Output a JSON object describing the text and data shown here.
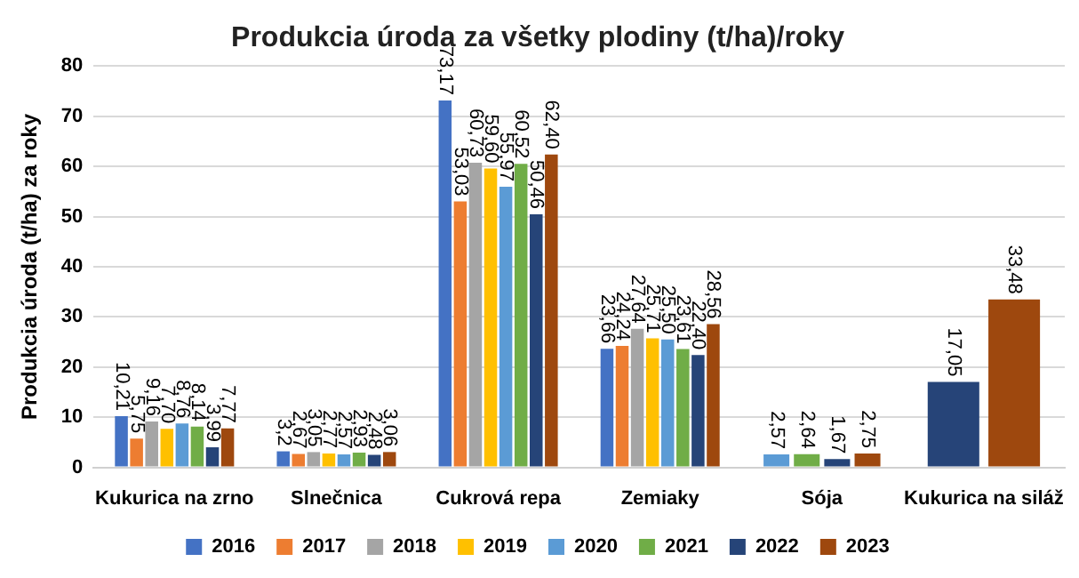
{
  "chart_data": {
    "type": "bar",
    "title": "Produkcia úroda za všetky plodiny (t/ha)/roky",
    "ylabel": "Produkcia úroda (t/ha) za roky",
    "categories": [
      "Kukurica na zrno",
      "Slnečnica",
      "Cukrová repa",
      "Zemiaky",
      "Sója",
      "Kukurica na siláž"
    ],
    "series": [
      {
        "name": "2016",
        "color": "#4472c4",
        "values": [
          10.21,
          3.2,
          73.17,
          23.66,
          null,
          null
        ],
        "value_labels": [
          "10,21",
          "3,2",
          "73,17",
          "23,66",
          null,
          null
        ]
      },
      {
        "name": "2017",
        "color": "#ed7d31",
        "values": [
          5.75,
          2.67,
          53.03,
          24.24,
          null,
          null
        ],
        "value_labels": [
          "5,75",
          "2,67",
          "53,03",
          "24,24",
          null,
          null
        ]
      },
      {
        "name": "2018",
        "color": "#a5a5a5",
        "values": [
          9.16,
          3.05,
          60.73,
          27.64,
          null,
          null
        ],
        "value_labels": [
          "9,16",
          "3,05",
          "60,73",
          "27,64",
          null,
          null
        ]
      },
      {
        "name": "2019",
        "color": "#ffc000",
        "values": [
          7.7,
          2.77,
          59.6,
          25.71,
          null,
          null
        ],
        "value_labels": [
          "7,70",
          "2,77",
          "59,60",
          "25,71",
          null,
          null
        ]
      },
      {
        "name": "2020",
        "color": "#5b9bd5",
        "values": [
          8.76,
          2.57,
          55.97,
          25.5,
          2.57,
          null
        ],
        "value_labels": [
          "8,76",
          "2,57",
          "55,97",
          "25,50",
          "2,57",
          null
        ]
      },
      {
        "name": "2021",
        "color": "#70ad47",
        "values": [
          8.14,
          2.93,
          60.52,
          23.61,
          2.64,
          null
        ],
        "value_labels": [
          "8,14",
          "2,93",
          "60,52",
          "23,61",
          "2,64",
          null
        ]
      },
      {
        "name": "2022",
        "color": "#264478",
        "values": [
          3.99,
          2.48,
          50.46,
          22.4,
          1.67,
          17.05
        ],
        "value_labels": [
          "3,99",
          "2,48",
          "50,46",
          "22,40",
          "1,67",
          "17,05"
        ]
      },
      {
        "name": "2023",
        "color": "#9e480e",
        "values": [
          7.77,
          3.06,
          62.4,
          28.56,
          2.75,
          33.48
        ],
        "value_labels": [
          "7,77",
          "3,06",
          "62,40",
          "28,56",
          "2,75",
          "33,48"
        ]
      }
    ],
    "ylim": [
      0,
      80
    ],
    "yticks": [
      0,
      10,
      20,
      30,
      40,
      50,
      60,
      70,
      80
    ],
    "grid": "y",
    "legend": "bottom"
  }
}
